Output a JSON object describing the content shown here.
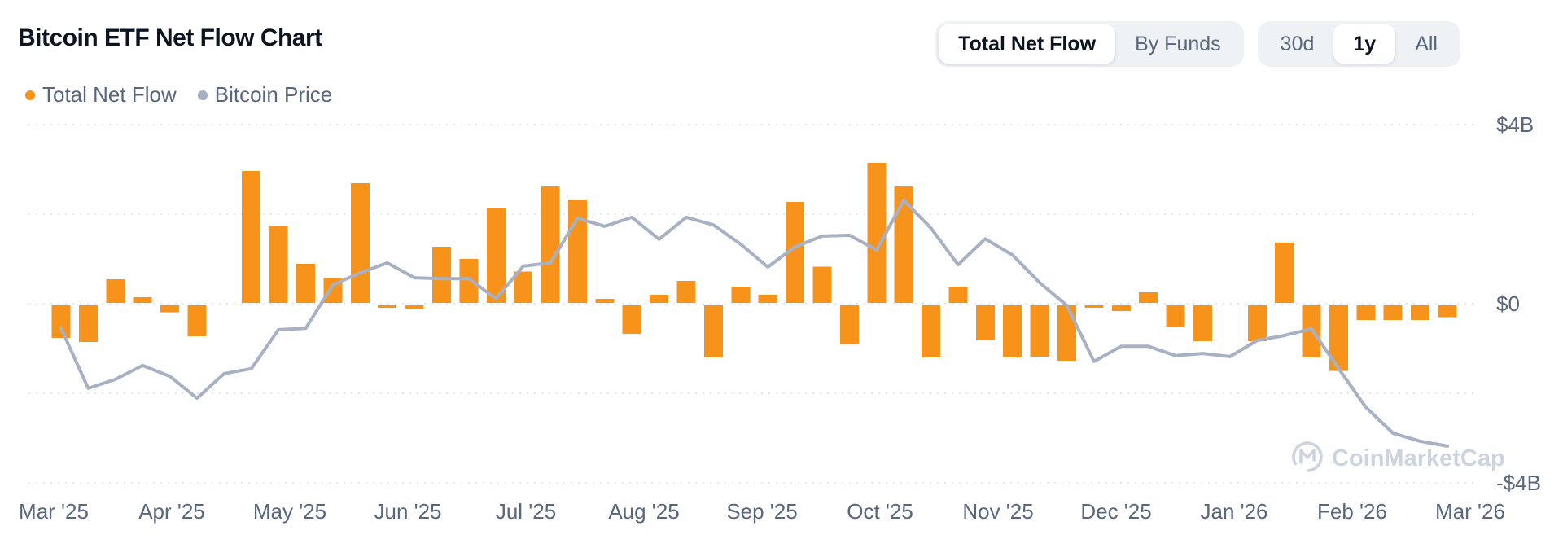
{
  "header": {
    "title": "Bitcoin ETF Net Flow Chart",
    "legend": [
      {
        "label": "Total Net Flow",
        "color": "#F7931A"
      },
      {
        "label": "Bitcoin Price",
        "color": "#A8B1C4"
      }
    ],
    "view_toggle": {
      "options": [
        "Total Net Flow",
        "By Funds"
      ],
      "active": "Total Net Flow"
    },
    "range_toggle": {
      "options": [
        "30d",
        "1y",
        "All"
      ],
      "active": "1y"
    }
  },
  "watermark": {
    "text": "CoinMarketCap"
  },
  "chart_data": {
    "type": "bar",
    "title": "Bitcoin ETF Net Flow Chart",
    "x_axis": {
      "tick_labels": [
        "Mar '25",
        "Apr '25",
        "May '25",
        "Jun '25",
        "Jul '25",
        "Aug '25",
        "Sep '25",
        "Oct '25",
        "Nov '25",
        "Dec '25",
        "Jan '26",
        "Feb '26",
        "Mar '26"
      ],
      "granularity": "weekly bars, 52 weeks"
    },
    "y_axis": {
      "unit": "USD billions",
      "ylim": [
        -4,
        4
      ],
      "gridline_values": [
        4,
        2,
        0,
        -2,
        -4
      ],
      "ticks": [
        {
          "value": 4,
          "label": "$4B"
        },
        {
          "value": 0,
          "label": "$0"
        },
        {
          "value": -4,
          "label": "-$4B"
        }
      ]
    },
    "grid": "dotted horizontal",
    "legend_position": "top-left",
    "series": [
      {
        "name": "Total Net Flow",
        "type": "bar",
        "color": "#F7931A",
        "unit": "$B per week",
        "values": [
          -0.76,
          -0.85,
          0.56,
          0.16,
          -0.19,
          -0.73,
          0,
          2.98,
          1.76,
          0.91,
          0.6,
          2.71,
          -0.08,
          -0.12,
          1.29,
          1.02,
          2.15,
          0.74,
          2.64,
          2.33,
          0.13,
          -0.67,
          0.22,
          0.53,
          -1.2,
          0.4,
          0.22,
          2.29,
          0.85,
          -0.9,
          3.16,
          2.64,
          -1.2,
          0.4,
          -0.82,
          -1.2,
          -1.18,
          -1.27,
          -0.05,
          -0.16,
          0.27,
          -0.53,
          -0.84,
          0,
          -0.84,
          1.38,
          -1.2,
          -1.5,
          -0.36,
          -0.36,
          -0.36,
          -0.3
        ]
      },
      {
        "name": "Bitcoin Price",
        "type": "line",
        "color": "#A8B1C4",
        "note": "price axis not labeled on chart; values are visual positions expressed in the $B net-flow axis",
        "values": [
          -0.55,
          -1.89,
          -1.69,
          -1.38,
          -1.62,
          -2.11,
          -1.56,
          -1.45,
          -0.58,
          -0.55,
          0.42,
          0.69,
          0.91,
          0.58,
          0.56,
          0.56,
          0.11,
          0.84,
          0.91,
          1.91,
          1.73,
          1.93,
          1.44,
          1.93,
          1.76,
          1.33,
          0.82,
          1.27,
          1.51,
          1.53,
          1.2,
          2.31,
          1.69,
          0.87,
          1.45,
          1.09,
          0.47,
          -0.04,
          -1.29,
          -0.95,
          -0.95,
          -1.16,
          -1.11,
          -1.18,
          -0.82,
          -0.71,
          -0.56,
          -1.45,
          -2.31,
          -2.89,
          -3.07,
          -3.18
        ]
      }
    ]
  },
  "style": {
    "bar_color": "#F7931A",
    "line_color": "#A8B1C4",
    "grid_color": "#E3E7EE",
    "axis_text_color": "#58667E",
    "watermark_color": "#C2CAD8"
  }
}
